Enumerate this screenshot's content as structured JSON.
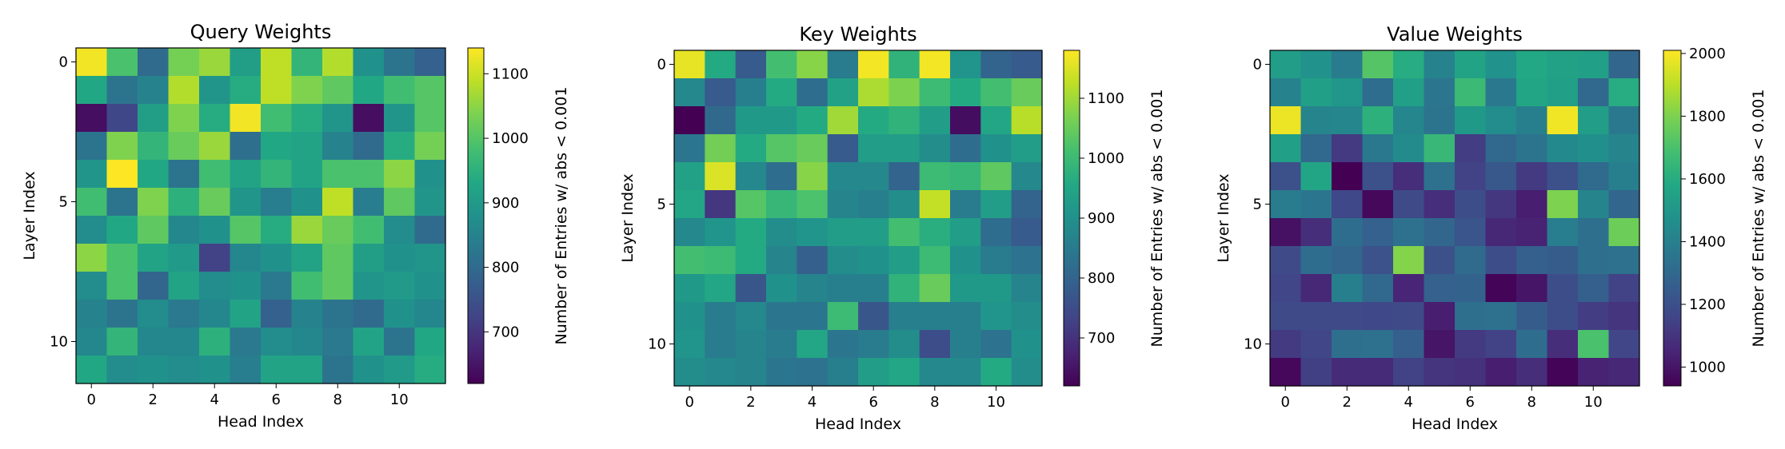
{
  "chart_data": [
    {
      "type": "heatmap",
      "title": "Query Weights",
      "xlabel": "Head Index",
      "ylabel": "Layer Index",
      "x_ticks": [
        0,
        2,
        4,
        6,
        8,
        10
      ],
      "y_ticks": [
        0,
        5,
        10
      ],
      "colorbar": {
        "label": "Number of Entries w/ abs < 0.001",
        "range": [
          620,
          1140
        ],
        "ticks": [
          700,
          800,
          900,
          1000,
          1100
        ]
      },
      "colormap": "viridis",
      "values": [
        [
          1130,
          990,
          800,
          1030,
          1060,
          910,
          1090,
          960,
          1080,
          880,
          820,
          780
        ],
        [
          930,
          820,
          850,
          1080,
          890,
          940,
          1090,
          1040,
          1010,
          930,
          980,
          1000
        ],
        [
          640,
          730,
          910,
          1040,
          940,
          1130,
          980,
          940,
          890,
          640,
          890,
          1000
        ],
        [
          820,
          1040,
          960,
          1020,
          1060,
          810,
          930,
          920,
          850,
          800,
          940,
          1030
        ],
        [
          890,
          1140,
          930,
          820,
          980,
          920,
          960,
          920,
          990,
          990,
          1050,
          880
        ],
        [
          980,
          820,
          1040,
          950,
          1020,
          890,
          840,
          880,
          1090,
          840,
          1010,
          890
        ],
        [
          870,
          930,
          1010,
          860,
          880,
          1000,
          940,
          1060,
          1020,
          980,
          870,
          800
        ],
        [
          1050,
          990,
          920,
          900,
          720,
          860,
          880,
          920,
          1010,
          910,
          880,
          890
        ],
        [
          870,
          990,
          790,
          920,
          870,
          880,
          830,
          980,
          1010,
          890,
          900,
          880
        ],
        [
          850,
          820,
          870,
          830,
          860,
          920,
          780,
          850,
          820,
          800,
          880,
          860
        ],
        [
          860,
          960,
          860,
          860,
          950,
          830,
          870,
          860,
          830,
          920,
          820,
          930
        ],
        [
          930,
          870,
          880,
          870,
          880,
          840,
          920,
          920,
          820,
          880,
          900,
          940
        ]
      ]
    },
    {
      "type": "heatmap",
      "title": "Key Weights",
      "xlabel": "Head Index",
      "ylabel": "Layer Index",
      "x_ticks": [
        0,
        2,
        4,
        6,
        8,
        10
      ],
      "y_ticks": [
        0,
        5,
        10
      ],
      "colorbar": {
        "label": "Number of Entries w/ abs < 0.001",
        "range": [
          620,
          1180
        ],
        "ticks": [
          700,
          800,
          900,
          1000,
          1100
        ]
      },
      "colormap": "viridis",
      "values": [
        [
          1160,
          960,
          780,
          1010,
          1080,
          850,
          1170,
          980,
          1170,
          910,
          800,
          780
        ],
        [
          880,
          780,
          860,
          960,
          820,
          940,
          1110,
          1070,
          1000,
          960,
          1010,
          1050
        ],
        [
          620,
          810,
          920,
          920,
          960,
          1100,
          960,
          980,
          930,
          640,
          950,
          1120
        ],
        [
          840,
          1060,
          960,
          1030,
          1050,
          780,
          930,
          930,
          890,
          820,
          900,
          930
        ],
        [
          940,
          1150,
          880,
          820,
          1080,
          880,
          880,
          800,
          1000,
          990,
          1040,
          880
        ],
        [
          950,
          710,
          1030,
          990,
          1020,
          870,
          860,
          890,
          1130,
          850,
          930,
          800
        ],
        [
          880,
          910,
          960,
          890,
          910,
          930,
          930,
          1010,
          970,
          930,
          820,
          780
        ],
        [
          1010,
          1000,
          960,
          870,
          790,
          890,
          900,
          930,
          1000,
          900,
          850,
          830
        ],
        [
          920,
          950,
          770,
          900,
          870,
          860,
          860,
          980,
          1050,
          920,
          920,
          870
        ],
        [
          900,
          850,
          880,
          840,
          840,
          1000,
          770,
          860,
          860,
          860,
          910,
          890
        ],
        [
          910,
          850,
          870,
          850,
          950,
          840,
          850,
          890,
          750,
          860,
          830,
          900
        ],
        [
          890,
          880,
          870,
          840,
          830,
          860,
          930,
          950,
          880,
          880,
          960,
          890
        ]
      ]
    },
    {
      "type": "heatmap",
      "title": "Value Weights",
      "xlabel": "Head Index",
      "ylabel": "Layer Index",
      "x_ticks": [
        0,
        2,
        4,
        6,
        8,
        10
      ],
      "y_ticks": [
        0,
        5,
        10
      ],
      "colorbar": {
        "label": "Number of Entries w/ abs < 0.001",
        "range": [
          940,
          2010
        ],
        "ticks": [
          1000,
          1200,
          1400,
          1600,
          1800,
          2000
        ]
      },
      "colormap": "viridis",
      "values": [
        [
          1530,
          1480,
          1380,
          1720,
          1600,
          1410,
          1560,
          1480,
          1580,
          1550,
          1540,
          1290
        ],
        [
          1410,
          1540,
          1500,
          1320,
          1540,
          1360,
          1660,
          1370,
          1570,
          1540,
          1300,
          1600
        ],
        [
          1980,
          1420,
          1430,
          1620,
          1430,
          1350,
          1510,
          1460,
          1400,
          1990,
          1530,
          1370
        ],
        [
          1540,
          1300,
          1120,
          1370,
          1450,
          1650,
          1130,
          1300,
          1350,
          1440,
          1470,
          1420
        ],
        [
          1200,
          1570,
          940,
          1200,
          1080,
          1340,
          1150,
          1230,
          1120,
          1200,
          1310,
          1400
        ],
        [
          1380,
          1360,
          1170,
          960,
          1180,
          1080,
          1190,
          1110,
          1030,
          1800,
          1420,
          1290
        ],
        [
          990,
          1080,
          1320,
          1270,
          1340,
          1290,
          1220,
          1060,
          1040,
          1390,
          1330,
          1770
        ],
        [
          1180,
          1320,
          1290,
          1210,
          1810,
          1200,
          1310,
          1190,
          1260,
          1250,
          1330,
          1340
        ],
        [
          1160,
          1060,
          1400,
          1300,
          1050,
          1270,
          1280,
          950,
          1000,
          1190,
          1260,
          1150
        ],
        [
          1180,
          1180,
          1180,
          1170,
          1180,
          1030,
          1330,
          1340,
          1250,
          1190,
          1130,
          1100
        ],
        [
          1120,
          1160,
          1330,
          1340,
          1260,
          1000,
          1120,
          1150,
          1320,
          1080,
          1700,
          1160
        ],
        [
          960,
          1140,
          1070,
          1070,
          1150,
          1100,
          1090,
          1030,
          1080,
          950,
          1040,
          1060
        ]
      ]
    }
  ]
}
